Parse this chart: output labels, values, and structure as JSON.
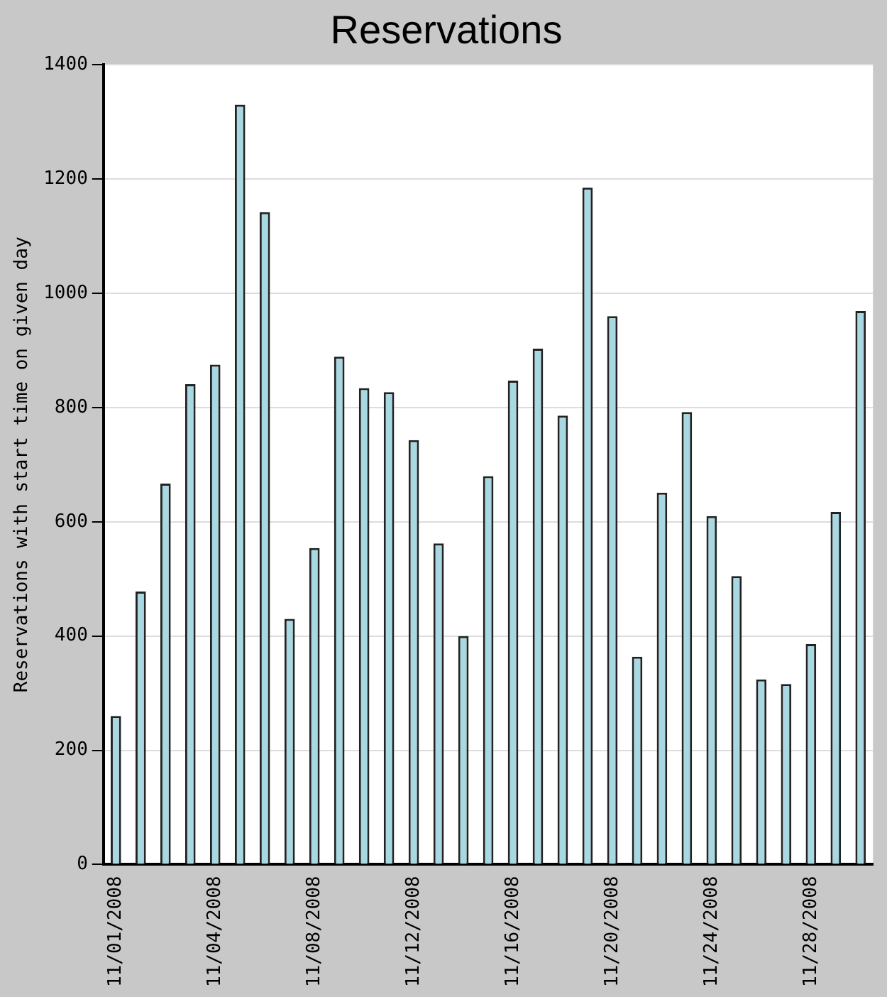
{
  "chart_data": {
    "type": "bar",
    "title": "Reservations",
    "ylabel": "Reservations with start time on given day",
    "categories": [
      "11/01/2008",
      null,
      null,
      null,
      "11/04/2008",
      null,
      null,
      null,
      "11/08/2008",
      null,
      null,
      null,
      "11/12/2008",
      null,
      null,
      null,
      "11/16/2008",
      null,
      null,
      null,
      "11/20/2008",
      null,
      null,
      null,
      "11/24/2008",
      null,
      null,
      null,
      "11/28/2008",
      null,
      null
    ],
    "values": [
      260,
      478,
      667,
      841,
      875,
      1330,
      1142,
      430,
      554,
      889,
      834,
      827,
      743,
      562,
      400,
      680,
      847,
      903,
      786,
      1185,
      960,
      364,
      651,
      792,
      610,
      505,
      324,
      316,
      386,
      617,
      969
    ],
    "color": "#a8d8e2",
    "ylim": [
      0,
      1400
    ],
    "yticks": [
      0,
      200,
      400,
      600,
      800,
      1000,
      1200,
      1400
    ],
    "grid": "y"
  }
}
